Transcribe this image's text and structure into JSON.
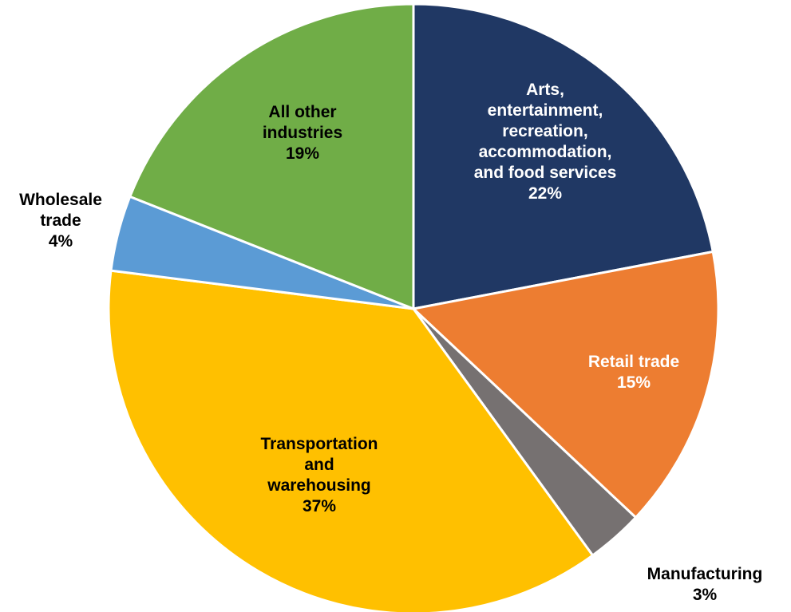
{
  "chart_data": {
    "type": "pie",
    "slices": [
      {
        "label_lines": [
          "Arts,",
          "entertainment,",
          "recreation,",
          "accommodation,",
          "and food services",
          "22%"
        ],
        "value": 22,
        "color": "#203864",
        "label_color": "#ffffff"
      },
      {
        "label_lines": [
          "Retail trade",
          "15%"
        ],
        "value": 15,
        "color": "#ed7d31",
        "label_color": "#ffffff"
      },
      {
        "label_lines": [
          "Manufacturing",
          "3%"
        ],
        "value": 3,
        "color": "#767171",
        "label_color": "#000000"
      },
      {
        "label_lines": [
          "Transportation",
          "and",
          "warehousing",
          "37%"
        ],
        "value": 37,
        "color": "#ffc000",
        "label_color": "#000000"
      },
      {
        "label_lines": [
          "Wholesale",
          "trade",
          "4%"
        ],
        "value": 4,
        "color": "#5b9bd5",
        "label_color": "#000000"
      },
      {
        "label_lines": [
          "All other",
          "industries",
          "19%"
        ],
        "value": 19,
        "color": "#70ad47",
        "label_color": "#000000"
      }
    ]
  }
}
